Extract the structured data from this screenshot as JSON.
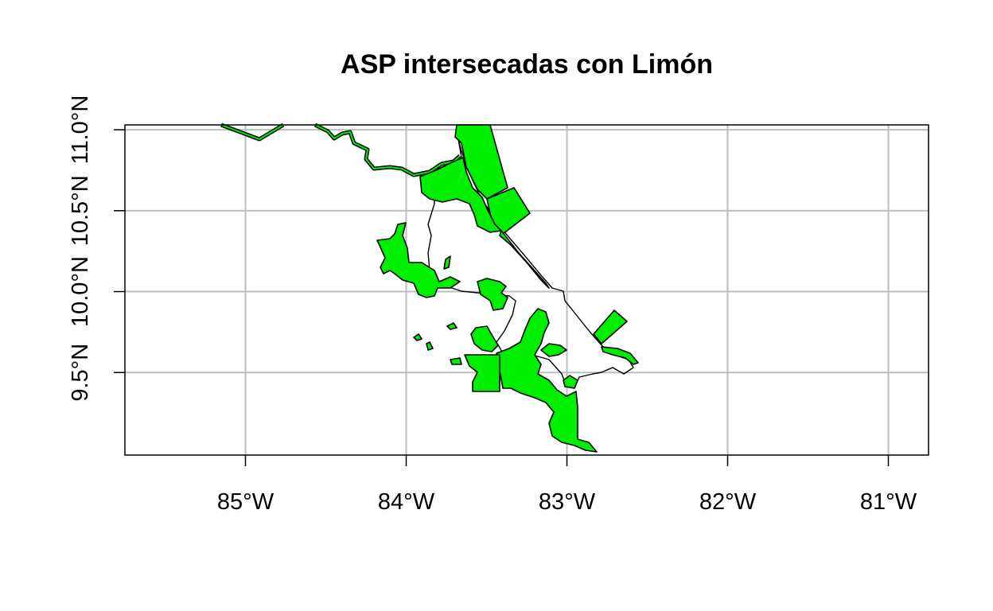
{
  "title": "ASP intersecadas con Limón",
  "colors": {
    "protected_area_fill": "#00ee00",
    "outline": "#000000",
    "grid": "#bebebe",
    "background": "#ffffff"
  },
  "axes": {
    "x_ticks": [
      {
        "lon": -85,
        "label": "85°W"
      },
      {
        "lon": -84,
        "label": "84°W"
      },
      {
        "lon": -83,
        "label": "83°W"
      },
      {
        "lon": -82,
        "label": "82°W"
      },
      {
        "lon": -81,
        "label": "81°W"
      }
    ],
    "y_ticks": [
      {
        "lat": 9.5,
        "label": "9.5°N"
      },
      {
        "lat": 10.0,
        "label": "10.0°N"
      },
      {
        "lat": 10.5,
        "label": "10.5°N"
      },
      {
        "lat": 11.0,
        "label": "11.0°N"
      }
    ],
    "x_range": [
      -85.75,
      -80.75
    ],
    "y_range": [
      8.99,
      11.03
    ],
    "grid": true
  }
}
